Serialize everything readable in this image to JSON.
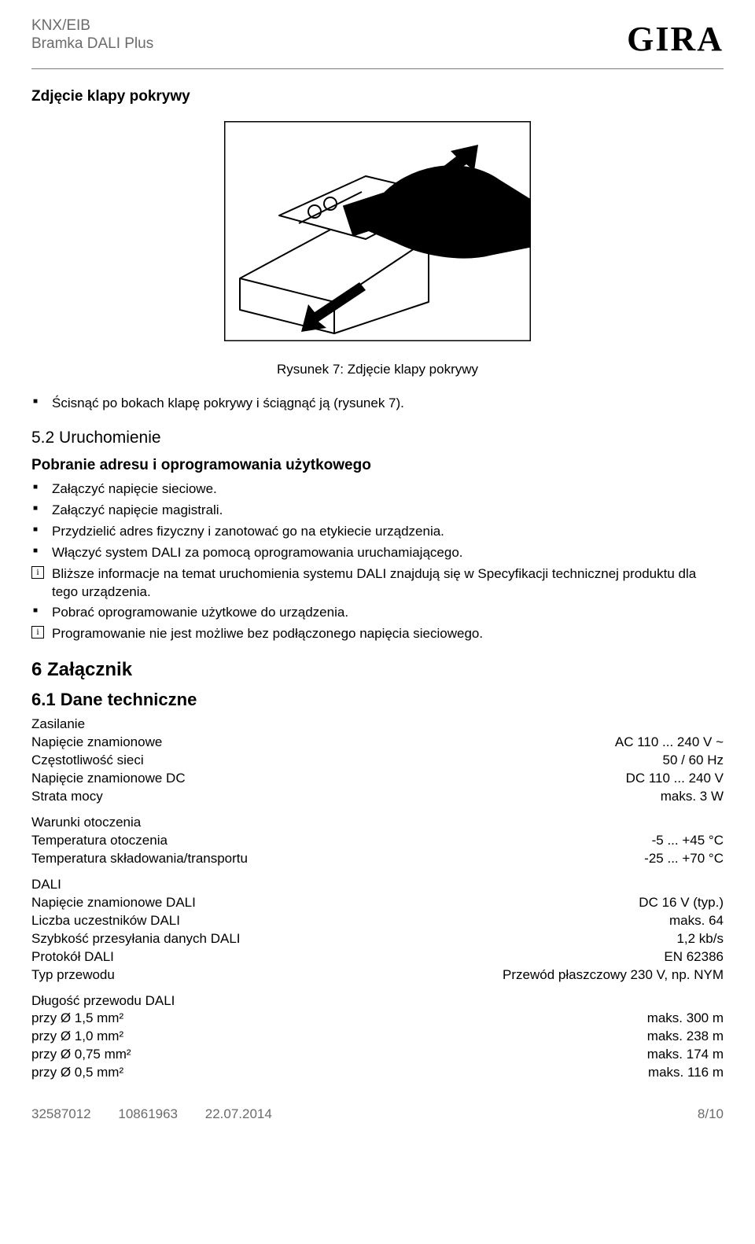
{
  "header": {
    "line1": "KNX/EIB",
    "line2": "Bramka DALI Plus",
    "logo": "GIRA"
  },
  "title1": "Zdjęcie klapy pokrywy",
  "figure": {
    "caption": "Rysunek 7: Zdjęcie klapy pokrywy",
    "border_color": "#000000",
    "bg": "#ffffff",
    "stroke": "#000000"
  },
  "bullets1": [
    "Ścisnąć po bokach klapę pokrywy i ściągnąć ją (rysunek 7)."
  ],
  "section52": {
    "num_title": "5.2 Uruchomienie",
    "subtitle": "Pobranie adresu i oprogramowania użytkowego",
    "items": [
      {
        "type": "sq",
        "text": "Załączyć napięcie sieciowe."
      },
      {
        "type": "sq",
        "text": "Załączyć napięcie magistrali."
      },
      {
        "type": "sq",
        "text": "Przydzielić adres fizyczny i zanotować go na etykiecie urządzenia."
      },
      {
        "type": "sq",
        "text": "Włączyć system DALI za pomocą oprogramowania uruchamiającego."
      },
      {
        "type": "info",
        "text": "Bliższe informacje na temat uruchomienia systemu DALI znajdują się w Specyfikacji technicznej produktu dla tego urządzenia."
      },
      {
        "type": "sq",
        "text": "Pobrać oprogramowanie użytkowe do urządzenia."
      },
      {
        "type": "info",
        "text": "Programowanie nie jest możliwe bez podłączonego napięcia sieciowego."
      }
    ]
  },
  "attachment": {
    "title": "6 Załącznik",
    "sub": "6.1 Dane techniczne",
    "groups": [
      {
        "head": "Zasilanie",
        "rows": [
          {
            "label": "Napięcie znamionowe",
            "value": "AC 110 ... 240 V ~"
          },
          {
            "label": "Częstotliwość sieci",
            "value": "50 / 60 Hz"
          },
          {
            "label": "Napięcie znamionowe DC",
            "value": "DC 110 ... 240 V"
          },
          {
            "label": "Strata mocy",
            "value": "maks. 3 W"
          }
        ]
      },
      {
        "head": "Warunki otoczenia",
        "rows": [
          {
            "label": "Temperatura otoczenia",
            "value": "-5 ... +45 °C"
          },
          {
            "label": "Temperatura składowania/transportu",
            "value": "-25 ... +70 °C"
          }
        ]
      },
      {
        "head": "DALI",
        "rows": [
          {
            "label": "Napięcie znamionowe DALI",
            "value": "DC 16 V (typ.)"
          },
          {
            "label": "Liczba uczestników DALI",
            "value": "maks. 64"
          },
          {
            "label": "Szybkość przesyłania danych DALI",
            "value": "1,2 kb/s"
          },
          {
            "label": "Protokół DALI",
            "value": "EN 62386"
          },
          {
            "label": "Typ przewodu",
            "value": "Przewód płaszczowy 230 V, np. NYM"
          }
        ]
      },
      {
        "head": "Długość przewodu DALI",
        "rows": [
          {
            "label": "przy Ø 1,5 mm²",
            "value": "maks. 300 m"
          },
          {
            "label": "przy Ø 1,0 mm²",
            "value": "maks. 238 m"
          },
          {
            "label": "przy Ø 0,75 mm²",
            "value": "maks. 174 m"
          },
          {
            "label": "przy Ø 0,5 mm²",
            "value": "maks. 116 m"
          }
        ]
      }
    ]
  },
  "footer": {
    "code1": "32587012",
    "code2": "10861963",
    "date": "22.07.2014",
    "page": "8/10"
  }
}
